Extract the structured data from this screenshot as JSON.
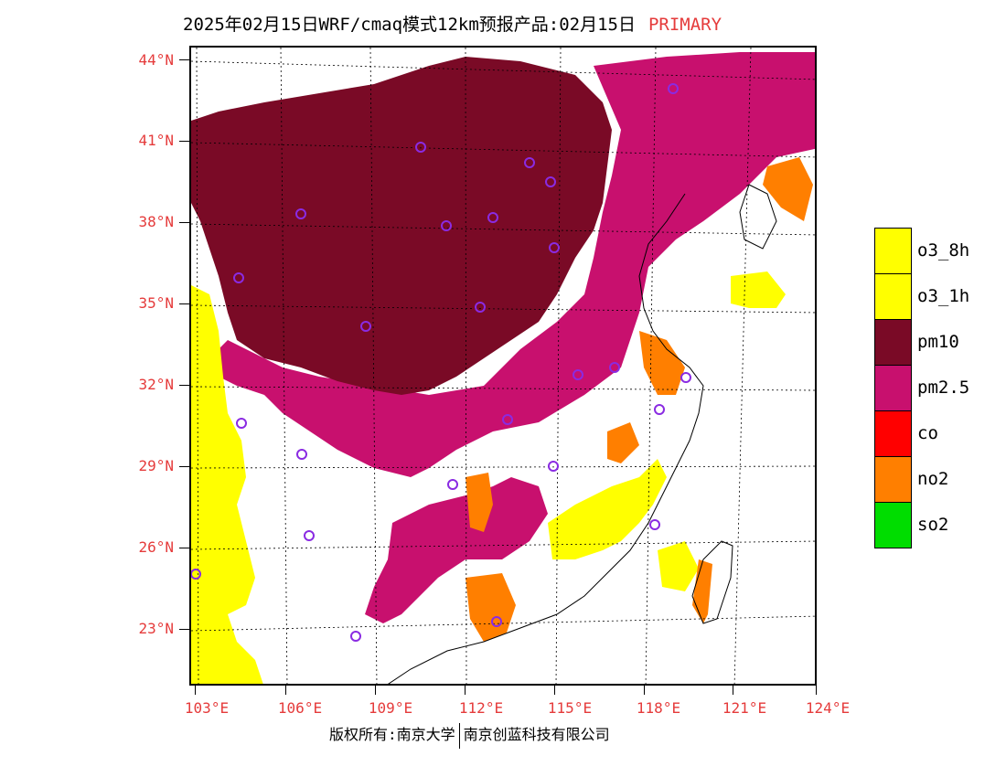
{
  "title": {
    "main": "2025年02月15日WRF/cmaq模式12km预报产品:02月15日",
    "tag": "PRIMARY"
  },
  "axes": {
    "lat_labels": [
      "44°N",
      "41°N",
      "38°N",
      "35°N",
      "32°N",
      "29°N",
      "26°N",
      "23°N"
    ],
    "lon_labels": [
      "103°E",
      "106°E",
      "109°E",
      "112°E",
      "115°E",
      "118°E",
      "121°E",
      "124°E"
    ]
  },
  "legend": [
    {
      "label": "o3_8h",
      "color": "#ffff00"
    },
    {
      "label": "o3_1h",
      "color": "#ffff00"
    },
    {
      "label": "pm10",
      "color": "#7a0a26"
    },
    {
      "label": "pm2.5",
      "color": "#c8106e"
    },
    {
      "label": "co",
      "color": "#ff0000"
    },
    {
      "label": "no2",
      "color": "#ff7f00"
    },
    {
      "label": "so2",
      "color": "#00dd00"
    }
  ],
  "footer": {
    "left": "版权所有:南京大学",
    "right": "南京创蓝科技有限公司"
  },
  "colors": {
    "axis_text": "#e53b3b",
    "station_marker": "#8a2be2"
  }
}
